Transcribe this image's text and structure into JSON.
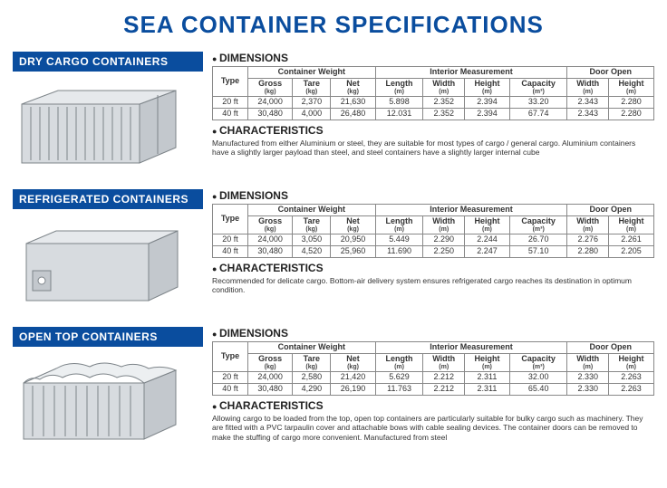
{
  "title": "SEA CONTAINER SPECIFICATIONS",
  "labels": {
    "dimensions": "DIMENSIONS",
    "characteristics": "CHARACTERISTICS",
    "type": "Type",
    "group_weight": "Container Weight",
    "group_interior": "Interior Measurement",
    "group_door": "Door Open",
    "gross": "Gross",
    "tare": "Tare",
    "net": "Net",
    "length": "Length",
    "width": "Width",
    "height": "Height",
    "capacity": "Capacity",
    "kg": "(kg)",
    "m": "(m)",
    "m3": "(m³)"
  },
  "colors": {
    "brand_blue": "#0a4d9e",
    "border": "#888888",
    "container_fill": "#d7dbdf",
    "container_stroke": "#7d8489",
    "container_shadow": "#b5bbc1"
  },
  "sections": [
    {
      "name": "DRY CARGO CONTAINERS",
      "characteristics": "Manufactured from either Aluminium or steel, they are suitable for most types of cargo / general cargo. Aluminium containers have a slightly larger payload than steel, and steel containers have a slightly larger internal cube",
      "rows": [
        {
          "type": "20 ft",
          "gross": "24,000",
          "tare": "2,370",
          "net": "21,630",
          "length": "5.898",
          "iwidth": "2.352",
          "iheight": "2.394",
          "capacity": "33.20",
          "dwidth": "2.343",
          "dheight": "2.280"
        },
        {
          "type": "40 ft",
          "gross": "30,480",
          "tare": "4,000",
          "net": "26,480",
          "length": "12.031",
          "iwidth": "2.352",
          "iheight": "2.394",
          "capacity": "67.74",
          "dwidth": "2.343",
          "dheight": "2.280"
        }
      ]
    },
    {
      "name": "REFRIGERATED CONTAINERS",
      "characteristics": "Recommended for delicate cargo. Bottom-air delivery system ensures refrigerated cargo reaches its destination in optimum condition.",
      "rows": [
        {
          "type": "20 ft",
          "gross": "24,000",
          "tare": "3,050",
          "net": "20,950",
          "length": "5.449",
          "iwidth": "2.290",
          "iheight": "2.244",
          "capacity": "26.70",
          "dwidth": "2.276",
          "dheight": "2.261"
        },
        {
          "type": "40 ft",
          "gross": "30,480",
          "tare": "4,520",
          "net": "25,960",
          "length": "11.690",
          "iwidth": "2.250",
          "iheight": "2.247",
          "capacity": "57.10",
          "dwidth": "2.280",
          "dheight": "2.205"
        }
      ]
    },
    {
      "name": "OPEN TOP CONTAINERS",
      "characteristics": "Allowing cargo to be loaded from the top, open top containers are particularly suitable for bulky cargo such as machinery. They are fitted with a PVC tarpaulin cover and attachable bows with cable sealing devices. The container doors can be removed to make the stuffing of cargo more convenient. Manufactured from steel",
      "rows": [
        {
          "type": "20 ft",
          "gross": "24,000",
          "tare": "2,580",
          "net": "21,420",
          "length": "5.629",
          "iwidth": "2.212",
          "iheight": "2.311",
          "capacity": "32.00",
          "dwidth": "2.330",
          "dheight": "2.263"
        },
        {
          "type": "40 ft",
          "gross": "30,480",
          "tare": "4,290",
          "net": "26,190",
          "length": "11.763",
          "iwidth": "2.212",
          "iheight": "2.311",
          "capacity": "65.40",
          "dwidth": "2.330",
          "dheight": "2.263"
        }
      ]
    }
  ]
}
